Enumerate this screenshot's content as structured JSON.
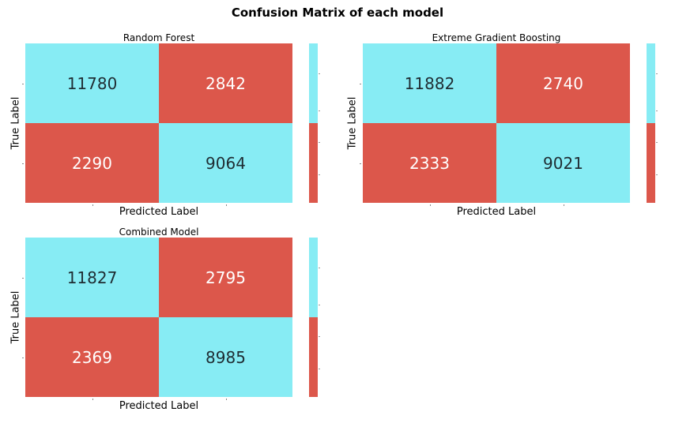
{
  "suptitle": "Confusion Matrix of each model",
  "colors": {
    "diagonal": "#87ecf4",
    "off_diagonal": "#dc574b"
  },
  "chart_data": [
    {
      "type": "heatmap",
      "title": "Random Forest",
      "xlabel": "Predicted Label",
      "ylabel": "True Label",
      "matrix": [
        [
          11780,
          2842
        ],
        [
          2290,
          9064
        ]
      ],
      "colorbar": true
    },
    {
      "type": "heatmap",
      "title": "Extreme Gradient Boosting",
      "xlabel": "Predicted Label",
      "ylabel": "True Label",
      "matrix": [
        [
          11882,
          2740
        ],
        [
          2333,
          9021
        ]
      ],
      "colorbar": true
    },
    {
      "type": "heatmap",
      "title": "Combined Model",
      "xlabel": "Predicted Label",
      "ylabel": "True Label",
      "matrix": [
        [
          11827,
          2795
        ],
        [
          2369,
          8985
        ]
      ],
      "colorbar": true
    }
  ]
}
